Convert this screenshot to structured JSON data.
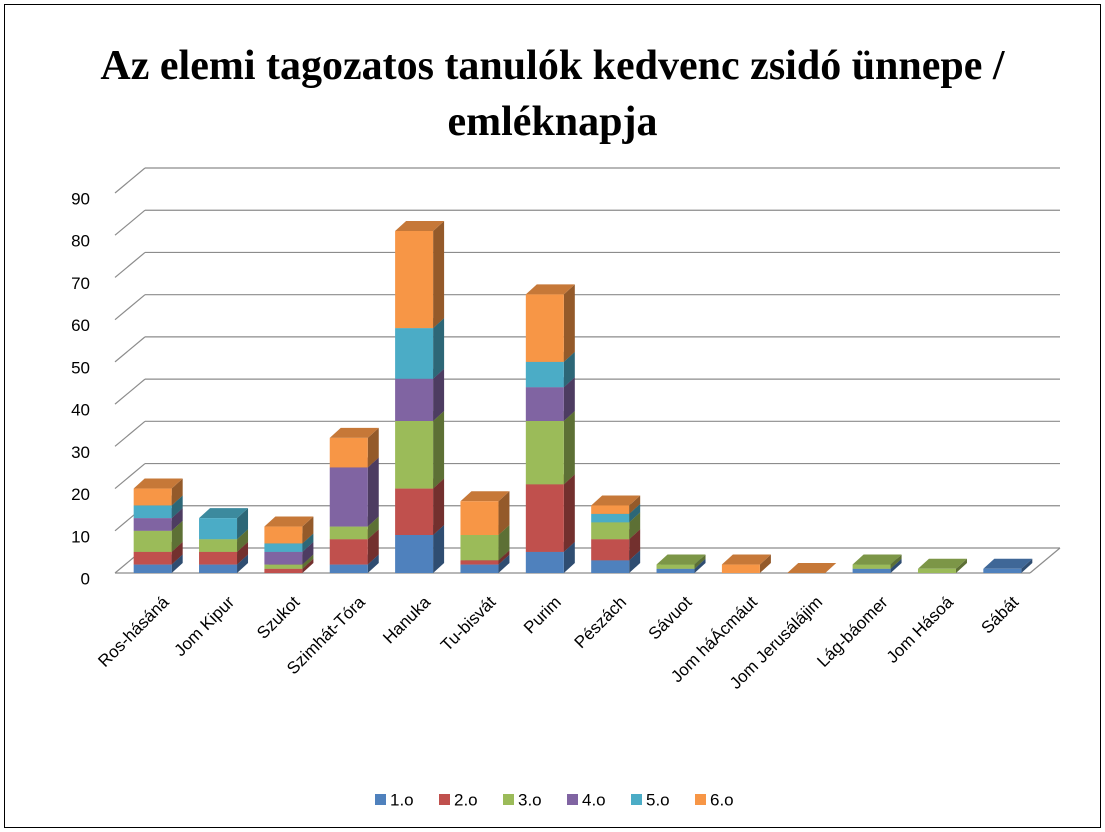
{
  "chart_data": {
    "type": "bar3d_stacked",
    "title": "Az elemi tagozatos tanulók kedvenc zsidó ünnepe / emléknapja",
    "categories": [
      "Ros-hásáná",
      "Jom Kipur",
      "Szukot",
      "Szimhát-Tóra",
      "Hanuka",
      "Tu-bisvát",
      "Purim",
      "Pészách",
      "Sávuot",
      "Jom háÁcmáut",
      "Jom Jerusálájim",
      "Lág-báomer",
      "Jom Hásoá",
      "Sábát"
    ],
    "series": [
      {
        "name": "1.o",
        "color": "#4f81bd",
        "values": [
          2,
          2,
          0,
          2,
          9,
          2,
          5,
          3,
          1,
          0,
          0,
          1,
          0,
          1
        ]
      },
      {
        "name": "2.o",
        "color": "#c0504d",
        "values": [
          3,
          3,
          1,
          6,
          11,
          1,
          16,
          5,
          0,
          0,
          0,
          0,
          0,
          0
        ]
      },
      {
        "name": "3.o",
        "color": "#9bbb59",
        "values": [
          5,
          3,
          1,
          3,
          16,
          6,
          15,
          4,
          1,
          0,
          0,
          1,
          1,
          0
        ]
      },
      {
        "name": "4.o",
        "color": "#8064a2",
        "values": [
          3,
          0,
          3,
          14,
          10,
          0,
          8,
          0,
          0,
          0,
          0,
          0,
          0,
          0
        ]
      },
      {
        "name": "5.o",
        "color": "#4bacc6",
        "values": [
          3,
          5,
          2,
          0,
          12,
          0,
          6,
          2,
          0,
          0,
          0,
          0,
          0,
          0
        ]
      },
      {
        "name": "6.o",
        "color": "#f79646",
        "values": [
          4,
          0,
          4,
          7,
          23,
          8,
          16,
          2,
          0,
          2,
          0,
          0,
          0,
          0
        ]
      }
    ],
    "ylim": [
      0,
      90
    ],
    "yticks": [
      0,
      10,
      20,
      30,
      40,
      50,
      60,
      70,
      80,
      90
    ],
    "grid": true,
    "legend": "bottom"
  }
}
